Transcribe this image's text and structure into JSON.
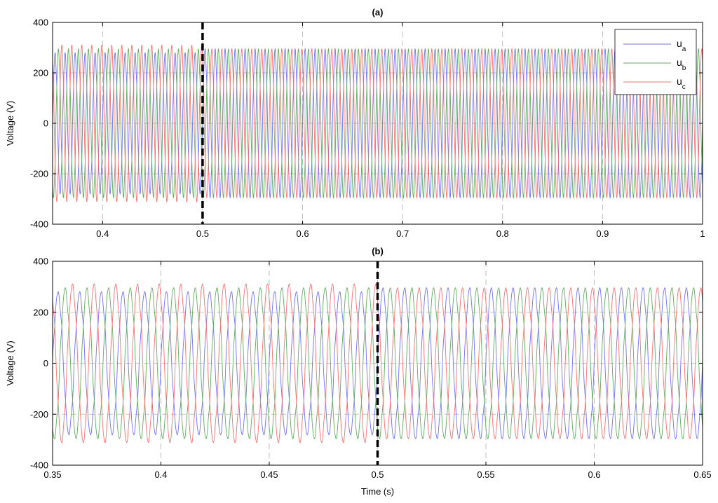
{
  "colors": {
    "ua": "#7070ff",
    "ub": "#5fae5f",
    "uc": "#ff6f6f",
    "marker": "#000000",
    "grid": "#b0b0b0"
  },
  "chart_data": [
    {
      "type": "line",
      "title": "(a)",
      "xlabel": "",
      "ylabel": "Voltage (V)",
      "xlim": [
        0.35,
        1.0
      ],
      "ylim": [
        -400,
        400
      ],
      "xticks": [
        0.4,
        0.5,
        0.6,
        0.7,
        0.8,
        0.9,
        1
      ],
      "xtick_labels": [
        "0.4",
        "0.5",
        "0.6",
        "0.7",
        "0.8",
        "0.9",
        "1"
      ],
      "yticks": [
        -400,
        -200,
        0,
        200,
        400
      ],
      "ytick_labels": [
        "-400",
        "-200",
        "0",
        "200",
        "400"
      ],
      "grid": true,
      "legend": "top-right",
      "frequency_hz": 100,
      "event_line_x": 0.5,
      "series": [
        {
          "name": "u",
          "subscript": "a",
          "phase_deg": 0,
          "amplitude_before": 275,
          "amplitude_after": 290
        },
        {
          "name": "u",
          "subscript": "b",
          "phase_deg": -120,
          "amplitude_before": 290,
          "amplitude_after": 290
        },
        {
          "name": "u",
          "subscript": "c",
          "phase_deg": 120,
          "amplitude_before": 305,
          "amplitude_after": 290
        }
      ]
    },
    {
      "type": "line",
      "title": "(b)",
      "xlabel": "Time (s)",
      "ylabel": "Voltage (V)",
      "xlim": [
        0.35,
        0.65
      ],
      "ylim": [
        -400,
        400
      ],
      "xticks": [
        0.35,
        0.4,
        0.45,
        0.5,
        0.55,
        0.6,
        0.65
      ],
      "xtick_labels": [
        "0.35",
        "0.4",
        "0.45",
        "0.5",
        "0.55",
        "0.6",
        "0.65"
      ],
      "yticks": [
        -400,
        -200,
        0,
        200,
        400
      ],
      "ytick_labels": [
        "-400",
        "-200",
        "0",
        "200",
        "400"
      ],
      "grid": true,
      "legend": "none",
      "frequency_hz": 100,
      "event_line_x": 0.5,
      "series": [
        {
          "name": "u",
          "subscript": "a",
          "phase_deg": 0,
          "amplitude_before": 275,
          "amplitude_after": 290
        },
        {
          "name": "u",
          "subscript": "b",
          "phase_deg": -120,
          "amplitude_before": 290,
          "amplitude_after": 290
        },
        {
          "name": "u",
          "subscript": "c",
          "phase_deg": 120,
          "amplitude_before": 305,
          "amplitude_after": 290
        }
      ]
    }
  ]
}
